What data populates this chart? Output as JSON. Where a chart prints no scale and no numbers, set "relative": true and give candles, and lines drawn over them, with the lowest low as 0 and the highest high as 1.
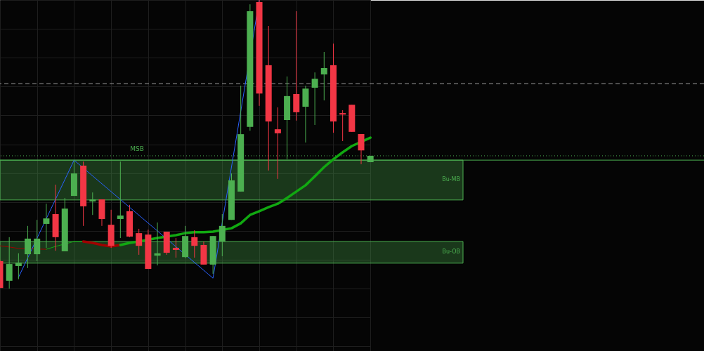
{
  "chart_data": {
    "type": "candlestick",
    "relative": true,
    "grid": true,
    "marker": "none",
    "categories": [
      null,
      null,
      null,
      null,
      null,
      null,
      null,
      null,
      null,
      null,
      null,
      null,
      null,
      null,
      null,
      null,
      null,
      null,
      null,
      null,
      null,
      null,
      null,
      null,
      null,
      null,
      null,
      null,
      null,
      null,
      null,
      null,
      null,
      null,
      null,
      null,
      null,
      null,
      null,
      null,
      null
    ],
    "ohlc": [
      [
        0.095,
        0.1,
        0.002,
        0.002
      ],
      [
        0.027,
        0.178,
        0,
        0.085
      ],
      [
        0.078,
        0.122,
        0.032,
        0.09
      ],
      [
        0.119,
        0.217,
        0.071,
        0.173
      ],
      [
        0.119,
        0.238,
        0.095,
        0.173
      ],
      [
        0.224,
        0.294,
        0.141,
        0.243
      ],
      [
        0.258,
        0.36,
        0.131,
        0.178
      ],
      [
        0.129,
        0.314,
        0.129,
        0.277
      ],
      [
        0.321,
        0.445,
        0.321,
        0.399
      ],
      [
        0.426,
        0.44,
        0.217,
        0.285
      ],
      [
        0.302,
        0.333,
        0.255,
        0.309
      ],
      [
        0.309,
        0.309,
        0.217,
        0.241
      ],
      [
        0.221,
        0.273,
        0.141,
        0.148
      ],
      [
        0.241,
        0.44,
        0.175,
        0.253
      ],
      [
        0.268,
        0.29,
        0.178,
        0.18
      ],
      [
        0.192,
        0.207,
        0.117,
        0.148
      ],
      [
        0.187,
        0.204,
        0.068,
        0.068
      ],
      [
        0.114,
        0.229,
        0.08,
        0.122
      ],
      [
        0.197,
        0.197,
        0.117,
        0.124
      ],
      [
        0.141,
        0.175,
        0.107,
        0.134
      ],
      [
        0.109,
        0.217,
        0.105,
        0.182
      ],
      [
        0.178,
        0.202,
        0.107,
        0.148
      ],
      [
        0.151,
        0.163,
        0.083,
        0.083
      ],
      [
        0.083,
        0.182,
        0.051,
        0.182
      ],
      [
        0.163,
        0.258,
        0.112,
        0.217
      ],
      [
        0.238,
        0.399,
        0.238,
        0.375
      ],
      [
        0.336,
        0.703,
        0.336,
        0.535
      ],
      [
        0.56,
        0.985,
        0.547,
        0.961
      ],
      [
        0.993,
        1,
        0.633,
        0.676
      ],
      [
        0.774,
        0.91,
        0.409,
        0.579
      ],
      [
        0.552,
        0.628,
        0.38,
        0.538
      ],
      [
        0.584,
        0.735,
        0.448,
        0.667
      ],
      [
        0.674,
        0.961,
        0.582,
        0.611
      ],
      [
        0.63,
        0.703,
        0.506,
        0.693
      ],
      [
        0.696,
        0.749,
        0.567,
        0.727
      ],
      [
        0.742,
        0.82,
        0.652,
        0.764
      ],
      [
        0.774,
        0.849,
        0.54,
        0.579
      ],
      [
        0.608,
        0.618,
        0.511,
        0.603
      ],
      [
        0.637,
        0.637,
        0.543,
        0.543
      ],
      [
        0.535,
        0.535,
        0.431,
        0.479
      ],
      [
        0.438,
        0.46,
        0.438,
        0.46
      ]
    ],
    "colors": [
      "#f23645",
      "#4caf50",
      "#4caf50",
      "#4caf50",
      "#4caf50",
      "#4caf50",
      "#f23645",
      "#4caf50",
      "#4caf50",
      "#f23645",
      "#4caf50",
      "#f23645",
      "#f23645",
      "#4caf50",
      "#f23645",
      "#f23645",
      "#f23645",
      "#4caf50",
      "#f23645",
      "#f23645",
      "#4caf50",
      "#f23645",
      "#f23645",
      "#4caf50",
      "#4caf50",
      "#4caf50",
      "#4caf50",
      "#4caf50",
      "#f23645",
      "#f23645",
      "#f23645",
      "#4caf50",
      "#f23645",
      "#4caf50",
      "#4caf50",
      "#4caf50",
      "#f23645",
      "#f23645",
      "#f23645",
      "#f23645",
      "#4caf50"
    ],
    "series": [
      {
        "type": "line",
        "color": "#a00000",
        "line_style": "solid",
        "values": [
          0.148,
          0.144,
          0.139,
          null,
          null,
          0.136,
          null,
          null,
          null,
          null,
          null,
          null,
          null,
          null,
          null,
          null,
          null,
          null,
          null,
          null,
          null,
          null,
          null,
          null,
          null,
          null,
          null,
          null,
          null,
          null,
          null,
          null,
          null,
          null,
          null,
          null,
          null,
          null,
          null,
          null,
          null
        ]
      },
      {
        "type": "line",
        "color": "#11a811",
        "line_style": "solid",
        "values": [
          null,
          null,
          null,
          null,
          null,
          0.136,
          0.146,
          null,
          0.163,
          0.163,
          null,
          null,
          null,
          null,
          null,
          null,
          null,
          null,
          null,
          null,
          null,
          null,
          null,
          null,
          null,
          null,
          null,
          null,
          null,
          null,
          null,
          null,
          null,
          null,
          null,
          null,
          null,
          null,
          null,
          null,
          null
        ]
      },
      {
        "type": "line",
        "color": "#a00000",
        "line_style": "solid",
        "values": [
          null,
          null,
          null,
          null,
          null,
          null,
          null,
          null,
          null,
          0.163,
          0.158,
          0.151,
          0.146,
          0.151,
          null,
          null,
          null,
          null,
          null,
          null,
          null,
          null,
          null,
          null,
          null,
          null,
          null,
          null,
          null,
          null,
          null,
          null,
          null,
          null,
          null,
          null,
          null,
          null,
          null,
          null,
          null
        ]
      },
      {
        "type": "line",
        "color": "#11a811",
        "line_style": "solid",
        "values": [
          null,
          null,
          null,
          null,
          null,
          null,
          null,
          null,
          null,
          null,
          null,
          null,
          null,
          0.151,
          0.158,
          0.163,
          null,
          0.175,
          null,
          0.185,
          0.192,
          0.195,
          0.195,
          0.197,
          null,
          0.209,
          0.226,
          0.255,
          0.268,
          0.282,
          0.294,
          0.314,
          0.336,
          0.358,
          0.389,
          0.421,
          0.448,
          0.472,
          0.494,
          null,
          0.523
        ]
      },
      {
        "type": "line",
        "color": "#2962ff",
        "line_style": "solid",
        "values": [
          null,
          null,
          0.039,
          null,
          null,
          null,
          null,
          null,
          0.445,
          null,
          null,
          null,
          null,
          null,
          null,
          null,
          null,
          null,
          null,
          null,
          null,
          null,
          null,
          0.036,
          null,
          null,
          null,
          null,
          1,
          null,
          null,
          null,
          null,
          null,
          null,
          null,
          null,
          null,
          null,
          null,
          null
        ]
      }
    ],
    "ref_lines": [
      {
        "axis": "y",
        "value": 0.71,
        "color": "#9e9e9e",
        "line_style": "dashed"
      },
      {
        "axis": "y",
        "value": 0.46,
        "color": "#4caf50",
        "line_style": "dotted"
      },
      {
        "axis": "y",
        "value": 0.445,
        "label": "MSB",
        "color": "#4caf50",
        "line_style": "solid"
      }
    ],
    "bands": [
      {
        "axis": "y",
        "from": 0.307,
        "to": 0.445,
        "label": "Bu-MB",
        "color": "#4caf50"
      },
      {
        "axis": "y",
        "from": 0.088,
        "to": 0.163,
        "label": "Bu-OB",
        "color": "#4caf50"
      }
    ]
  }
}
